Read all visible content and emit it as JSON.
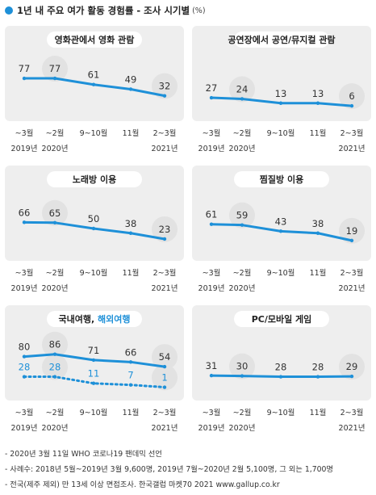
{
  "header": {
    "title": "1년 내 주요 여가 활동 경험률 - 조사 시기별",
    "unit": "(%)"
  },
  "colors": {
    "accent": "#1e90d8",
    "panel_bg": "#eeeeee",
    "title_pill": "#ffffff",
    "circle": "#e2e2e2"
  },
  "chart_data": [
    {
      "type": "line",
      "title": "영화관에서 영화 관람",
      "categories": [
        "~3월",
        "~2월",
        "9~10월",
        "11월",
        "2~3월"
      ],
      "year_labels": [
        "2019년",
        "2020년",
        "",
        "",
        "2021년"
      ],
      "series": [
        {
          "values": [
            77,
            77,
            61,
            49,
            32
          ],
          "style": "solid",
          "color": "#1e90d8",
          "label_color": "#333333"
        }
      ],
      "highlight_indices": [
        1,
        4
      ],
      "ylim": [
        0,
        100
      ]
    },
    {
      "type": "line",
      "title": "공연장에서 공연/뮤지컬 관람",
      "categories": [
        "~3월",
        "~2월",
        "9~10월",
        "11월",
        "2~3월"
      ],
      "year_labels": [
        "2019년",
        "2020년",
        "",
        "",
        "2021년"
      ],
      "series": [
        {
          "values": [
            27,
            24,
            13,
            13,
            6
          ],
          "style": "solid",
          "color": "#1e90d8",
          "label_color": "#333333"
        }
      ],
      "highlight_indices": [
        1,
        4
      ],
      "ylim": [
        0,
        100
      ]
    },
    {
      "type": "line",
      "title": "노래방 이용",
      "categories": [
        "~3월",
        "~2월",
        "9~10월",
        "11월",
        "2~3월"
      ],
      "year_labels": [
        "2019년",
        "2020년",
        "",
        "",
        "2021년"
      ],
      "series": [
        {
          "values": [
            66,
            65,
            50,
            38,
            23
          ],
          "style": "solid",
          "color": "#1e90d8",
          "label_color": "#333333"
        }
      ],
      "highlight_indices": [
        1,
        4
      ],
      "ylim": [
        0,
        100
      ]
    },
    {
      "type": "line",
      "title": "찜질방 이용",
      "categories": [
        "~3월",
        "~2월",
        "9~10월",
        "11월",
        "2~3월"
      ],
      "year_labels": [
        "2019년",
        "2020년",
        "",
        "",
        "2021년"
      ],
      "series": [
        {
          "values": [
            61,
            59,
            43,
            38,
            19
          ],
          "style": "solid",
          "color": "#1e90d8",
          "label_color": "#333333"
        }
      ],
      "highlight_indices": [
        1,
        4
      ],
      "ylim": [
        0,
        100
      ]
    },
    {
      "type": "line",
      "title": "국내여행,",
      "title_extra": "해외여행",
      "categories": [
        "~3월",
        "~2월",
        "9~10월",
        "11월",
        "2~3월"
      ],
      "year_labels": [
        "2019년",
        "2020년",
        "",
        "",
        "2021년"
      ],
      "series": [
        {
          "name": "국내여행",
          "values": [
            80,
            86,
            71,
            66,
            54
          ],
          "style": "solid",
          "color": "#1e90d8",
          "label_color": "#333333"
        },
        {
          "name": "해외여행",
          "values": [
            28,
            28,
            11,
            7,
            1
          ],
          "style": "dotted",
          "color": "#1e90d8",
          "label_color": "#1e90d8"
        }
      ],
      "highlight_indices": [
        1,
        4
      ],
      "ylim": [
        0,
        100
      ]
    },
    {
      "type": "line",
      "title": "PC/모바일 게임",
      "categories": [
        "~3월",
        "~2월",
        "9~10월",
        "11월",
        "2~3월"
      ],
      "year_labels": [
        "2019년",
        "2020년",
        "",
        "",
        "2021년"
      ],
      "series": [
        {
          "values": [
            31,
            30,
            28,
            28,
            29
          ],
          "style": "solid",
          "color": "#1e90d8",
          "label_color": "#333333"
        }
      ],
      "highlight_indices": [
        1,
        4
      ],
      "ylim": [
        0,
        100
      ]
    }
  ],
  "footnotes": [
    "- 2020년 3월 11일 WHO 코로나19 팬데믹 선언",
    "- 사례수: 2018년 5월~2019년 3월 9,600명, 2019년 7월~2020년 2월 5,100명, 그 외는 1,700명",
    "- 전국(제주 제외) 만 13세 이상 면접조사. 한국갤럽 마켓70 2021 www.gallup.co.kr"
  ]
}
